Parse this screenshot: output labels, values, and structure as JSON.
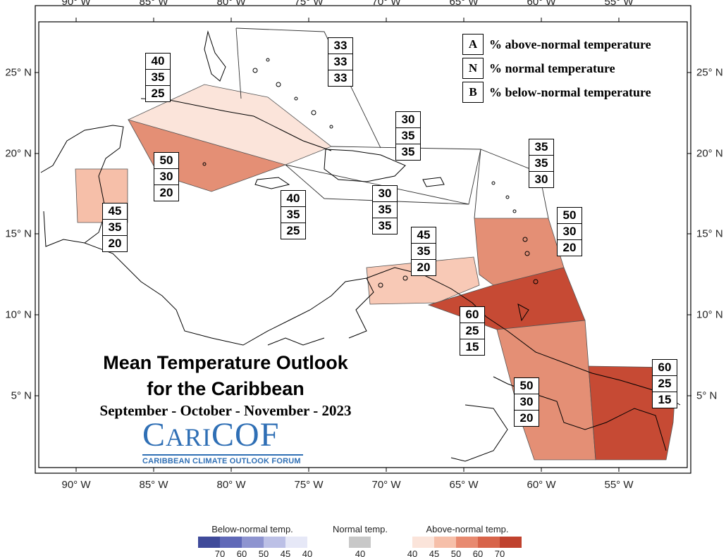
{
  "title": {
    "line1": "Mean Temperature Outlook",
    "line2": "for the Caribbean",
    "season": "September - October - November - 2023"
  },
  "logo": {
    "name_lead": "C",
    "name_mid": "ARI",
    "name_tail": "COF",
    "subtitle": "CARIBBEAN CLIMATE OUTLOOK FORUM",
    "color": "#2f6fb5"
  },
  "axes": {
    "longitude_ticks": [
      "90° W",
      "85° W",
      "80° W",
      "75° W",
      "70° W",
      "65° W",
      "60° W",
      "55° W"
    ],
    "latitude_ticks": [
      "25° N",
      "20° N",
      "15° N",
      "10° N",
      "5° N"
    ]
  },
  "legend_key": [
    {
      "key": "A",
      "text": "% above-normal temperature"
    },
    {
      "key": "N",
      "text": "% normal temperature"
    },
    {
      "key": "B",
      "text": "% below-normal temperature"
    }
  ],
  "probability_boxes": [
    {
      "id": "bahamas",
      "values": [
        "33",
        "33",
        "33"
      ]
    },
    {
      "id": "cuba",
      "values": [
        "40",
        "35",
        "25"
      ]
    },
    {
      "id": "cayman",
      "values": [
        "50",
        "30",
        "20"
      ]
    },
    {
      "id": "belize",
      "values": [
        "45",
        "35",
        "20"
      ]
    },
    {
      "id": "jamaica",
      "values": [
        "40",
        "35",
        "25"
      ]
    },
    {
      "id": "turks-caicos",
      "values": [
        "30",
        "35",
        "35"
      ]
    },
    {
      "id": "hispaniola-pr",
      "values": [
        "30",
        "35",
        "35"
      ]
    },
    {
      "id": "leeward",
      "values": [
        "35",
        "35",
        "30"
      ]
    },
    {
      "id": "windward",
      "values": [
        "50",
        "30",
        "20"
      ]
    },
    {
      "id": "abc-islands",
      "values": [
        "45",
        "35",
        "20"
      ]
    },
    {
      "id": "trinidad",
      "values": [
        "60",
        "25",
        "15"
      ]
    },
    {
      "id": "guyana",
      "values": [
        "50",
        "30",
        "20"
      ]
    },
    {
      "id": "suriname",
      "values": [
        "60",
        "25",
        "15"
      ]
    }
  ],
  "colorbar": {
    "below_label": "Below-normal temp.",
    "normal_label": "Normal temp.",
    "above_label": "Above-normal temp.",
    "below_ticks": [
      "70",
      "60",
      "50",
      "45",
      "40"
    ],
    "normal_ticks": [
      "40"
    ],
    "above_ticks": [
      "40",
      "45",
      "50",
      "60",
      "70"
    ],
    "below_colors": [
      "#3f4a9a",
      "#6069b8",
      "#8e94d0",
      "#bcc0e6",
      "#e6e8f7"
    ],
    "normal_color": "#c8c8c8",
    "above_colors": [
      "#fbe4da",
      "#f6bfa9",
      "#e88a70",
      "#d8644a",
      "#c0422e"
    ]
  }
}
